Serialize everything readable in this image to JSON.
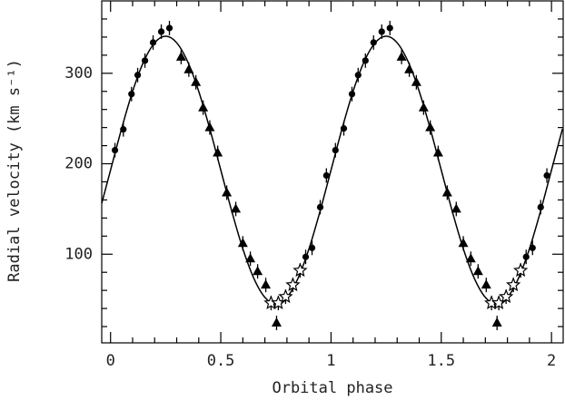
{
  "chart_data": {
    "type": "scatter",
    "xlabel": "Orbital phase",
    "ylabel": "Radial velocity (km s⁻¹)",
    "xlim": [
      -0.04,
      2.053
    ],
    "ylim": [
      2,
      380
    ],
    "xticks": [
      0,
      0.5,
      1,
      1.5,
      2
    ],
    "yticks": [
      100,
      200,
      300
    ],
    "xminorticks": [
      0.1,
      0.2,
      0.3,
      0.4,
      0.6,
      0.7,
      0.8,
      0.9,
      1.1,
      1.2,
      1.3,
      1.4,
      1.6,
      1.7,
      1.8,
      1.9
    ],
    "yminorticks": [
      20,
      40,
      60,
      80,
      120,
      140,
      160,
      180,
      220,
      240,
      260,
      280,
      320,
      340,
      360
    ],
    "series": [
      {
        "kind": "line",
        "color": "#000000",
        "x": [
          -0.04,
          0,
          0.05,
          0.1,
          0.15,
          0.2,
          0.25,
          0.3,
          0.35,
          0.4,
          0.45,
          0.5,
          0.55,
          0.6,
          0.65,
          0.7,
          0.75,
          0.8,
          0.85,
          0.9,
          0.95,
          1,
          1.05,
          1.1,
          1.15,
          1.2,
          1.25,
          1.3,
          1.35,
          1.4,
          1.45,
          1.5,
          1.55,
          1.6,
          1.65,
          1.7,
          1.75,
          1.8,
          1.85,
          1.9,
          1.95,
          2,
          2.05
        ],
        "values": [
          156.2,
          193,
          238.7,
          280.0,
          312.7,
          333.7,
          341,
          333.7,
          312.7,
          280.0,
          238.7,
          193,
          147.3,
          106.0,
          73.3,
          52.3,
          45,
          52.3,
          73.3,
          106.0,
          147.3,
          193,
          238.7,
          280.0,
          312.7,
          333.7,
          341,
          333.7,
          312.7,
          280.0,
          238.7,
          193,
          147.3,
          106.0,
          73.3,
          52.3,
          45,
          52.3,
          73.3,
          106.0,
          147.3,
          193,
          238.7
        ]
      },
      {
        "kind": "circle",
        "color": "#000000",
        "error": 8,
        "x": [
          0.02,
          0.058,
          0.095,
          0.123,
          0.156,
          0.193,
          0.23,
          0.267,
          0.885,
          0.914,
          0.951,
          0.979,
          1.02,
          1.058,
          1.095,
          1.123,
          1.156,
          1.193,
          1.23,
          1.267,
          1.885,
          1.914,
          1.951,
          1.979
        ],
        "values": [
          215,
          238,
          277,
          298,
          314,
          334,
          346,
          350,
          97,
          107,
          152,
          187,
          215,
          239,
          277,
          298,
          314,
          334,
          346,
          350,
          97,
          107,
          152,
          187
        ]
      },
      {
        "kind": "triangle",
        "color": "#000000",
        "error": 8,
        "x": [
          0.32,
          0.355,
          0.387,
          0.42,
          0.45,
          0.486,
          0.527,
          0.568,
          0.6,
          0.634,
          0.667,
          0.704,
          0.753,
          1.32,
          1.355,
          1.387,
          1.42,
          1.45,
          1.486,
          1.527,
          1.568,
          1.6,
          1.634,
          1.667,
          1.704,
          1.753
        ],
        "values": [
          318,
          304,
          290,
          262,
          240,
          212,
          168,
          150,
          112,
          95,
          81,
          66,
          24,
          318,
          304,
          290,
          262,
          240,
          212,
          168,
          150,
          112,
          95,
          81,
          66,
          24
        ]
      },
      {
        "kind": "star",
        "color": "#000000",
        "error": 8,
        "x": [
          0.728,
          0.761,
          0.794,
          0.827,
          0.86,
          1.728,
          1.761,
          1.794,
          1.827,
          1.86
        ],
        "values": [
          46,
          46,
          53,
          66,
          82,
          46,
          46,
          53,
          66,
          82
        ]
      }
    ]
  }
}
